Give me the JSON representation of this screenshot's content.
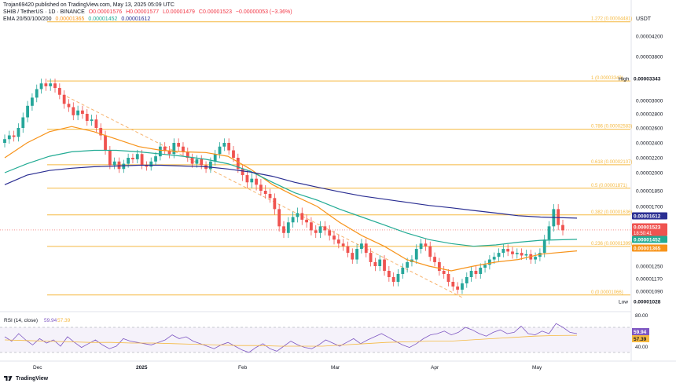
{
  "header": {
    "line1": "Trojan69420 published on TradingView.com, May 13, 2025 05:09 UTC",
    "symbol": "SHIB / TetherUS · 1D · BINANCE",
    "o": "O0.00001576",
    "h": "H0.00001577",
    "l": "L0.00001479",
    "c": "C0.00001523",
    "change": "−0.00000053 (−3.36%)",
    "ema_label": "EMA 20/50/100/200",
    "ema_values": [
      "0.00001365",
      "0.00001452",
      "0.00001612"
    ]
  },
  "currency": "USDT",
  "colors": {
    "up": "#26a69a",
    "down": "#ef5350",
    "ema20": "#f7931a",
    "ema50": "#22ab94",
    "ema100": "#2a2e92",
    "fib": "#f5b940",
    "rsi": "#7e57c2",
    "rsi_ma": "#f5b940"
  },
  "chart_data": {
    "type": "candlestick",
    "price_axis_ticks": [
      "0.00004200",
      "0.00003800",
      "0.00003400",
      "0.00003000",
      "0.00002800",
      "0.00002600",
      "0.00002400",
      "0.00002200",
      "0.00002000",
      "0.00001850",
      "0.00001700",
      "0.00001250",
      "0.00001170",
      "0.00001090"
    ],
    "time_axis": [
      "Dec",
      "2025",
      "Feb",
      "Mar",
      "Apr",
      "May"
    ],
    "fib_levels": [
      {
        "label": "1.272 (0.00004481)",
        "price": 4.481e-05
      },
      {
        "label": "1 (0.00003343)",
        "price": 3.343e-05
      },
      {
        "label": "0.786 (0.00002583)",
        "price": 2.583e-05
      },
      {
        "label": "0.618 (0.00002107)",
        "price": 2.107e-05
      },
      {
        "label": "0.5 (0.00001871)",
        "price": 1.871e-05
      },
      {
        "label": "0.382 (0.00001636)",
        "price": 1.636e-05
      },
      {
        "label": "0.236 (0.00001399)",
        "price": 1.399e-05
      },
      {
        "label": "0 (0.00001066)",
        "price": 1.066e-05
      }
    ],
    "price_tags": [
      {
        "text": "0.00003343",
        "label": "High",
        "price": 3.343e-05,
        "bg": "#ffffff",
        "fg": "#131722"
      },
      {
        "text": "0.00001612",
        "label": "",
        "price": 1.612e-05,
        "bg": "#2a2e92",
        "fg": "#ffffff"
      },
      {
        "text": "0.00001523",
        "sub": "18:50:41",
        "label": "",
        "price": 1.523e-05,
        "bg": "#ef5350",
        "fg": "#ffffff"
      },
      {
        "text": "0.00001452",
        "label": "",
        "price": 1.452e-05,
        "bg": "#22ab94",
        "fg": "#ffffff"
      },
      {
        "text": "0.00001365",
        "label": "",
        "price": 1.365e-05,
        "bg": "#f7931a",
        "fg": "#ffffff"
      },
      {
        "text": "0.00001028",
        "label": "Low",
        "price": 1.028e-05,
        "bg": "#ffffff",
        "fg": "#131722"
      }
    ],
    "rsi": {
      "label": "RSI (14, close)",
      "value": "59.94",
      "ma": "57.39",
      "axis": [
        "80.00",
        "40.00"
      ],
      "upper": 70,
      "lower": 30
    }
  },
  "footer": "TradingView"
}
